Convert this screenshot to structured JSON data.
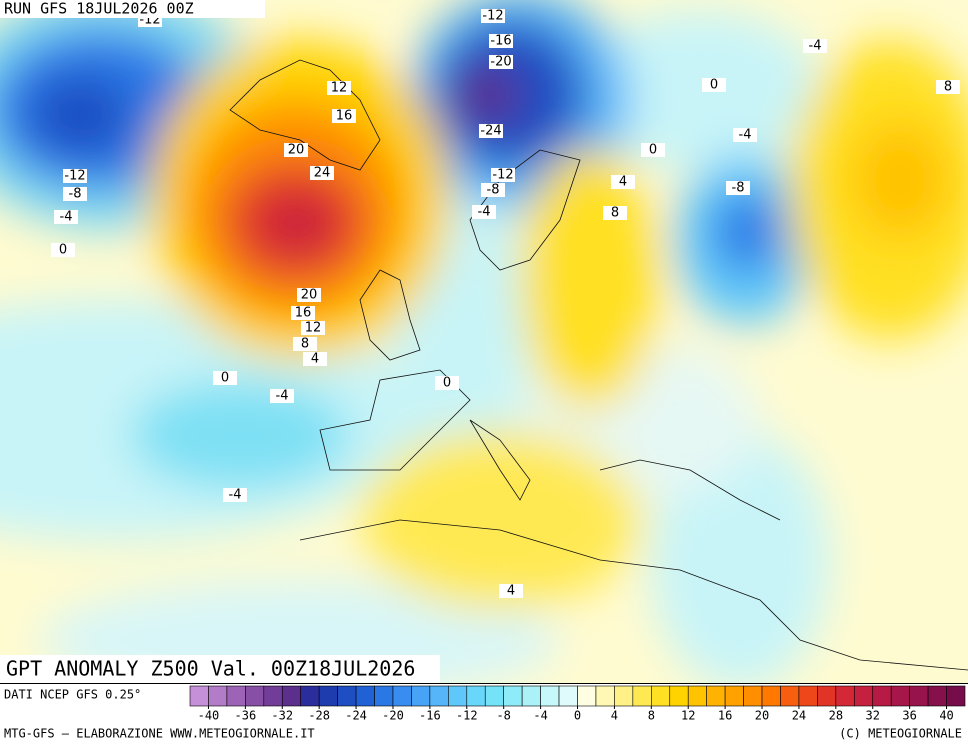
{
  "header": {
    "run": "RUN GFS 18JUL2026 00Z"
  },
  "map": {
    "title": "GPT ANOMALY Z500 Val. 00Z18JUL2026",
    "contour_labels": [
      -12,
      -12,
      -16,
      -20,
      -24,
      -12,
      -8,
      -4,
      -4,
      0,
      8,
      -4,
      0,
      4,
      8,
      -8,
      12,
      16,
      20,
      24,
      -12,
      -8,
      -4,
      0,
      20,
      16,
      12,
      8,
      4,
      0,
      -4,
      0,
      -4,
      4
    ]
  },
  "footer": {
    "source": "DATI NCEP GFS 0.25°",
    "credit": "MTG-GFS — ELABORAZIONE WWW.METEOGIORNALE.IT",
    "copyright": "(C) METEOGIORNALE"
  },
  "colorbar": {
    "lim": [
      -42,
      42
    ],
    "ticks": [
      -40,
      -36,
      -32,
      -28,
      -24,
      -20,
      -16,
      -12,
      -8,
      -4,
      0,
      4,
      8,
      12,
      16,
      20,
      24,
      28,
      32,
      36,
      40
    ],
    "colors": [
      "#c590d8",
      "#b27cc8",
      "#9c63b6",
      "#874fa6",
      "#723d98",
      "#5c2f8c",
      "#2b2d9c",
      "#1f3cae",
      "#1e4ec2",
      "#2062d6",
      "#2a78e6",
      "#3a8df0",
      "#48a2f6",
      "#56b5f9",
      "#60c7fa",
      "#68d7fa",
      "#74e3f8",
      "#8eecf8",
      "#aaf2f8",
      "#c6f7fa",
      "#e0fbfc",
      "#fffde2",
      "#fff8b4",
      "#fff186",
      "#ffe953",
      "#ffe022",
      "#ffd300",
      "#ffc300",
      "#ffb200",
      "#ffa200",
      "#ff8e00",
      "#ff7800",
      "#f85e10",
      "#ee481a",
      "#e23426",
      "#d52836",
      "#c62040",
      "#b61a45",
      "#a61649",
      "#96134b",
      "#86104b",
      "#760d4a"
    ]
  }
}
